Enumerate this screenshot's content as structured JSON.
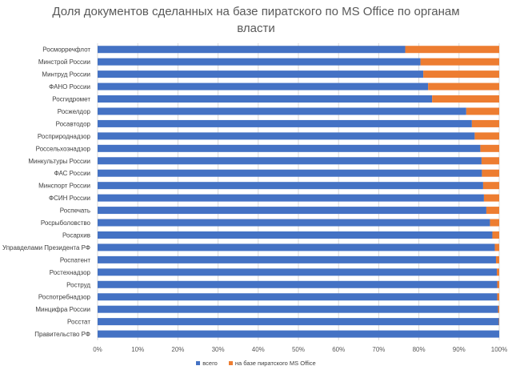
{
  "chart_data": {
    "type": "bar",
    "orientation": "horizontal",
    "stacked": "percent",
    "title_lines": [
      "Доля документов сделанных на базе пиратского по MS Office по органам",
      "власти"
    ],
    "categories": [
      "Росморречфлот",
      "Минстрой России",
      "Минтруд России",
      "ФАНО России",
      "Росгидромет",
      "Росжелдор",
      "Росавтодор",
      "Росприроднадзор",
      "Россельхознадзор",
      "Минкультуры России",
      "ФАС России",
      "Минспорт России",
      "ФСИН России",
      "Роспечать",
      "Росрыболовство",
      "Росархив",
      "Управделами Президента РФ",
      "Роспатент",
      "Ростехнадзор",
      "Роструд",
      "Роспотребнадзор",
      "Минцифра России",
      "Росстат",
      "Правительство РФ"
    ],
    "series": [
      {
        "name": "всего",
        "color": "#4472C4",
        "values": [
          76.6,
          80.4,
          81.1,
          82.3,
          83.3,
          91.8,
          93.2,
          93.9,
          95.3,
          95.6,
          95.7,
          96.0,
          96.2,
          96.8,
          97.7,
          98.3,
          98.9,
          99.2,
          99.4,
          99.5,
          99.5,
          99.7,
          99.9,
          100
        ]
      },
      {
        "name": "на базе пиратского MS Office",
        "color": "#ED7D31",
        "values": [
          23.4,
          19.6,
          18.9,
          17.7,
          16.7,
          8.2,
          6.8,
          6.1,
          4.7,
          4.4,
          4.3,
          4.0,
          3.8,
          3.2,
          2.3,
          1.7,
          1.1,
          0.8,
          0.6,
          0.5,
          0.5,
          0.3,
          0.1,
          0
        ]
      }
    ],
    "xlim": [
      0,
      100
    ],
    "xticks": [
      "0%",
      "10%",
      "20%",
      "30%",
      "40%",
      "50%",
      "60%",
      "70%",
      "80%",
      "90%",
      "100%"
    ],
    "grid": true,
    "legend": "bottom"
  }
}
